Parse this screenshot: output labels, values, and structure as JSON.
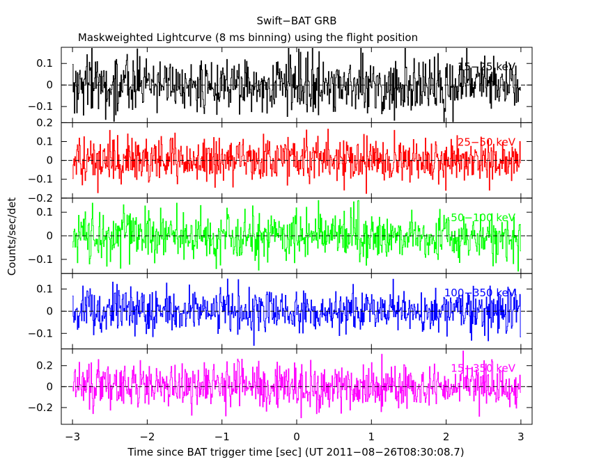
{
  "chart_data": {
    "type": "line",
    "title": "Swift−BAT GRB",
    "subtitle": "Maskweighted Lightcurve (8 ms binning) using the flight position",
    "xlabel": "Time since BAT trigger time [sec] (UT 2011−08−26T08:30:08.7)",
    "ylabel": "Counts/sec/det",
    "xlim": [
      -3.15,
      3.15
    ],
    "x_ticks": [
      -3,
      -2,
      -1,
      0,
      1,
      2,
      3
    ],
    "x_tick_labels": [
      "−3",
      "−2",
      "−1",
      "0",
      "1",
      "2",
      "3"
    ],
    "x_range": [
      -3.0,
      3.0
    ],
    "bin_size_sec": 0.008,
    "line_style": "histogram-step",
    "zero_line": "dashed",
    "panels": [
      {
        "name": "15−25 keV",
        "color": "#000000",
        "ylim": [
          -0.175,
          0.175
        ],
        "y_ticks": [
          -0.1,
          0,
          0.1
        ],
        "y_tick_labels": [
          "−0.1",
          "0",
          "0.1"
        ],
        "noise_sigma": 0.065,
        "value_range": [
          -0.17,
          0.17
        ]
      },
      {
        "name": "25−50 keV",
        "color": "#ff0000",
        "ylim": [
          -0.2,
          0.2
        ],
        "y_ticks": [
          -0.2,
          -0.1,
          0,
          0.1,
          0.2
        ],
        "y_tick_labels": [
          "−0.2",
          "−0.1",
          "0",
          "0.1",
          "0.2"
        ],
        "noise_sigma": 0.06,
        "value_range": [
          -0.19,
          0.19
        ]
      },
      {
        "name": "50−100 keV",
        "color": "#00ff00",
        "ylim": [
          -0.16,
          0.16
        ],
        "y_ticks": [
          -0.1,
          0,
          0.1
        ],
        "y_tick_labels": [
          "−0.1",
          "0",
          "0.1"
        ],
        "noise_sigma": 0.05,
        "value_range": [
          -0.15,
          0.15
        ]
      },
      {
        "name": "100−350 keV",
        "color": "#0000ff",
        "ylim": [
          -0.17,
          0.17
        ],
        "y_ticks": [
          -0.1,
          0,
          0.1
        ],
        "y_tick_labels": [
          "−0.1",
          "0",
          "0.1"
        ],
        "noise_sigma": 0.05,
        "value_range": [
          -0.16,
          0.16
        ]
      },
      {
        "name": "15−350 keV",
        "color": "#ff00ff",
        "ylim": [
          -0.36,
          0.36
        ],
        "y_ticks": [
          -0.2,
          0,
          0.2
        ],
        "y_tick_labels": [
          "−0.2",
          "0",
          "0.2"
        ],
        "noise_sigma": 0.11,
        "value_range": [
          -0.34,
          0.34
        ]
      }
    ]
  }
}
